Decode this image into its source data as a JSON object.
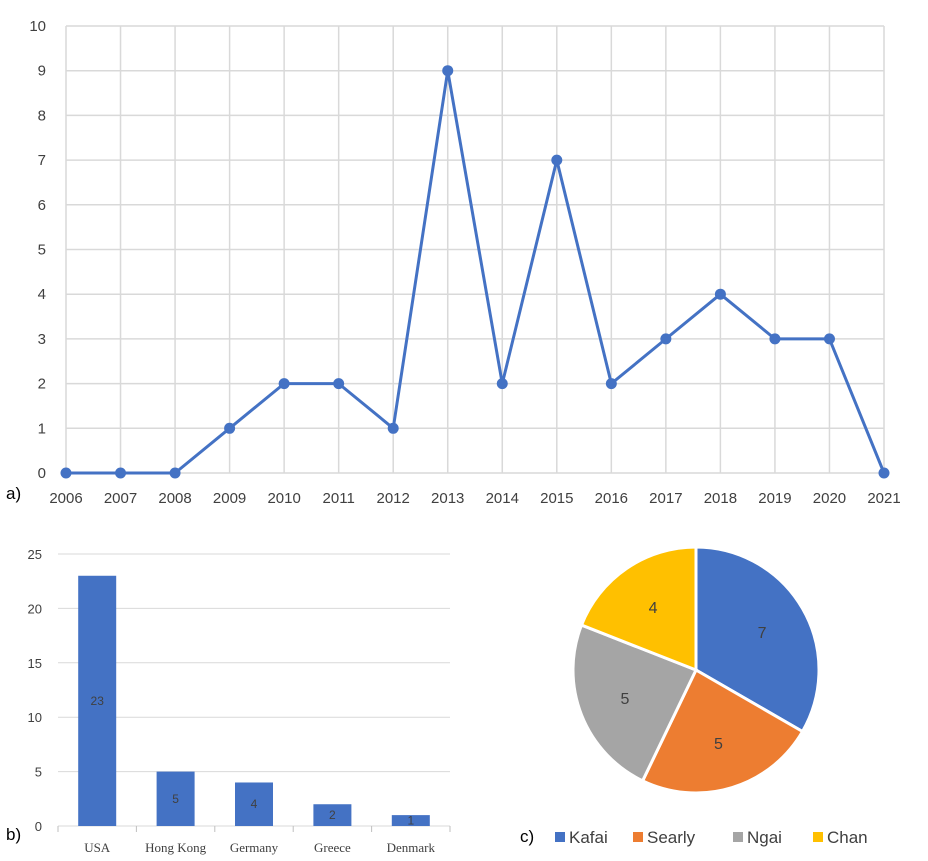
{
  "panels": {
    "a": "a)",
    "b": "b)",
    "c": "c)"
  },
  "colors": {
    "line": "#4472C4",
    "bar": "#4472C4",
    "grid": "#D9D9D9",
    "pie": [
      "#4472C4",
      "#ED7D31",
      "#A5A5A5",
      "#FFC000"
    ]
  },
  "chart_data": [
    {
      "type": "line",
      "x": [
        "2006",
        "2007",
        "2008",
        "2009",
        "2010",
        "2011",
        "2012",
        "2013",
        "2014",
        "2015",
        "2016",
        "2017",
        "2018",
        "2019",
        "2020",
        "2021"
      ],
      "values": [
        0,
        0,
        0,
        1,
        2,
        2,
        1,
        9,
        2,
        7,
        2,
        3,
        4,
        3,
        3,
        0
      ],
      "ylim": [
        0,
        10
      ],
      "yticks": [
        0,
        1,
        2,
        3,
        4,
        5,
        6,
        7,
        8,
        9,
        10
      ],
      "grid": true,
      "markers": true
    },
    {
      "type": "bar",
      "categories": [
        "USA",
        "Hong Kong",
        "Germany",
        "Greece",
        "Denmark"
      ],
      "values": [
        23,
        5,
        4,
        2,
        1
      ],
      "data_labels": [
        "23",
        "5",
        "4",
        "2",
        "1"
      ],
      "ylim": [
        0,
        25
      ],
      "yticks": [
        0,
        5,
        10,
        15,
        20,
        25
      ],
      "grid": true
    },
    {
      "type": "pie",
      "categories": [
        "Kafai",
        "Searly",
        "Ngai",
        "Chan"
      ],
      "values": [
        7,
        5,
        5,
        4
      ],
      "data_labels": [
        "7",
        "5",
        "5",
        "4"
      ],
      "legend": "bottom"
    }
  ]
}
